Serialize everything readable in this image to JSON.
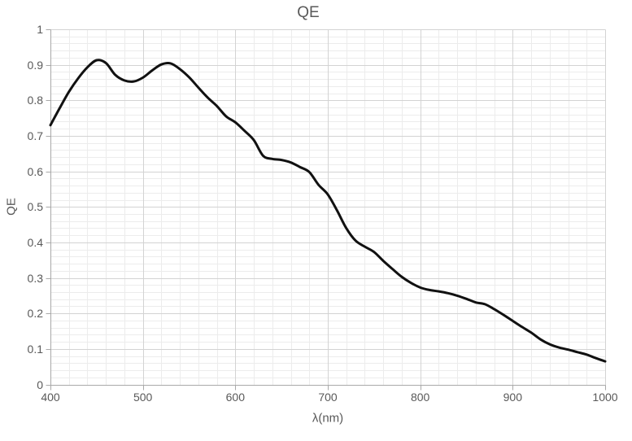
{
  "chart_data": {
    "type": "line",
    "title": "QE",
    "xlabel": "λ(nm)",
    "ylabel": "QE",
    "xlim": [
      400,
      1000
    ],
    "ylim": [
      0,
      1
    ],
    "x_major_step": 100,
    "x_minor_step": 20,
    "y_major_step": 0.1,
    "y_minor_step": 0.02,
    "grid": "major and minor, both axes",
    "legend_position": "none",
    "x_tick_values": [
      400,
      500,
      600,
      700,
      800,
      900,
      1000
    ],
    "x_tick_labels": [
      "400",
      "500",
      "600",
      "700",
      "800",
      "900",
      "1000"
    ],
    "y_tick_values": [
      0,
      0.1,
      0.2,
      0.3,
      0.4,
      0.5,
      0.6,
      0.7,
      0.8,
      0.9,
      1
    ],
    "y_tick_labels": [
      "0",
      "0.1",
      "0.2",
      "0.3",
      "0.4",
      "0.5",
      "0.6",
      "0.7",
      "0.8",
      "0.9",
      "1"
    ],
    "series": [
      {
        "name": "QE",
        "color": "#111111",
        "x": [
          400,
          410,
          420,
          430,
          440,
          450,
          460,
          470,
          480,
          490,
          500,
          510,
          520,
          530,
          540,
          550,
          560,
          570,
          580,
          590,
          600,
          610,
          620,
          630,
          640,
          650,
          660,
          670,
          680,
          690,
          700,
          710,
          720,
          730,
          740,
          750,
          760,
          770,
          780,
          790,
          800,
          810,
          820,
          830,
          840,
          850,
          860,
          870,
          880,
          890,
          900,
          910,
          920,
          930,
          940,
          950,
          960,
          970,
          980,
          990,
          1000
        ],
        "y": [
          0.73,
          0.778,
          0.824,
          0.862,
          0.893,
          0.913,
          0.905,
          0.872,
          0.856,
          0.853,
          0.864,
          0.884,
          0.901,
          0.904,
          0.888,
          0.865,
          0.836,
          0.808,
          0.784,
          0.755,
          0.738,
          0.714,
          0.688,
          0.644,
          0.635,
          0.632,
          0.625,
          0.612,
          0.598,
          0.562,
          0.535,
          0.49,
          0.44,
          0.405,
          0.388,
          0.373,
          0.348,
          0.325,
          0.303,
          0.286,
          0.273,
          0.266,
          0.262,
          0.257,
          0.25,
          0.241,
          0.231,
          0.226,
          0.212,
          0.196,
          0.179,
          0.162,
          0.146,
          0.127,
          0.113,
          0.104,
          0.098,
          0.091,
          0.084,
          0.074,
          0.065
        ]
      }
    ],
    "colors": {
      "major_grid": "#d3d3d3",
      "minor_grid": "#ececec",
      "axis_line": "#a9a9a9",
      "text": "#595959",
      "curve": "#111111",
      "background": "#ffffff"
    }
  }
}
